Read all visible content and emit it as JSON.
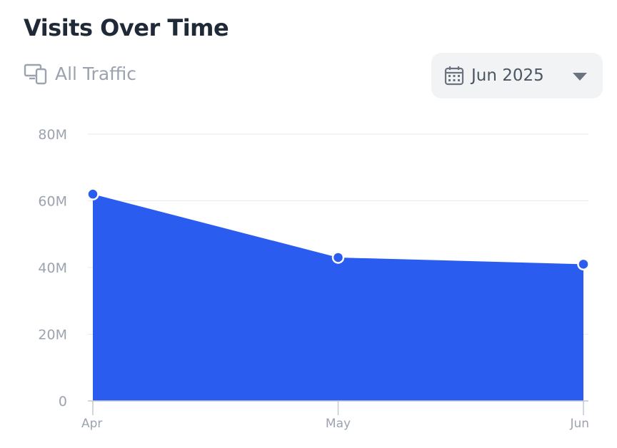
{
  "header": {
    "title": "Visits Over Time"
  },
  "filter": {
    "label": "All Traffic",
    "icon": "devices-icon"
  },
  "date_select": {
    "value": "Jun 2025",
    "icon": "calendar-icon"
  },
  "colors": {
    "area": "#2a5cf0",
    "point": "#2a5cf0",
    "grid": "#e8eaed",
    "axis": "#c4c8cf",
    "tick": "#9ca3af"
  },
  "chart_data": {
    "type": "area",
    "categories": [
      "Apr",
      "May",
      "Jun"
    ],
    "series": [
      {
        "values": [
          62000000,
          43000000,
          41000000
        ]
      }
    ],
    "ylim": [
      0,
      80000000
    ],
    "yticks": [
      0,
      20000000,
      40000000,
      60000000,
      80000000
    ],
    "ytick_labels": [
      "0",
      "20M",
      "40M",
      "60M",
      "80M"
    ],
    "grid": true
  }
}
